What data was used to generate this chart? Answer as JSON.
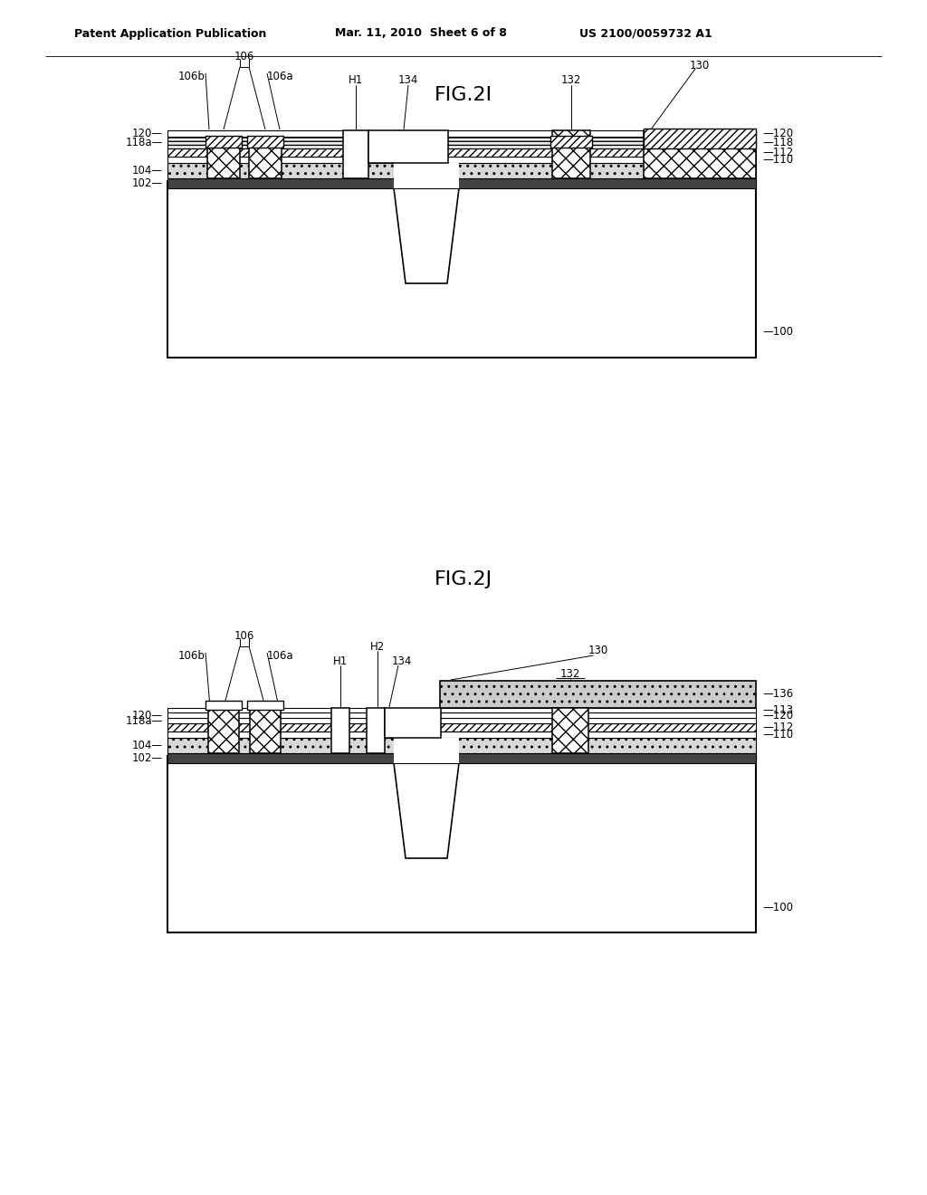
{
  "bg_color": "#ffffff",
  "header_left": "Patent Application Publication",
  "header_mid": "Mar. 11, 2010  Sheet 6 of 8",
  "header_right": "US 2100/0059732 A1",
  "fig_title_1": "FIG.2I",
  "fig_title_2": "FIG.2J"
}
